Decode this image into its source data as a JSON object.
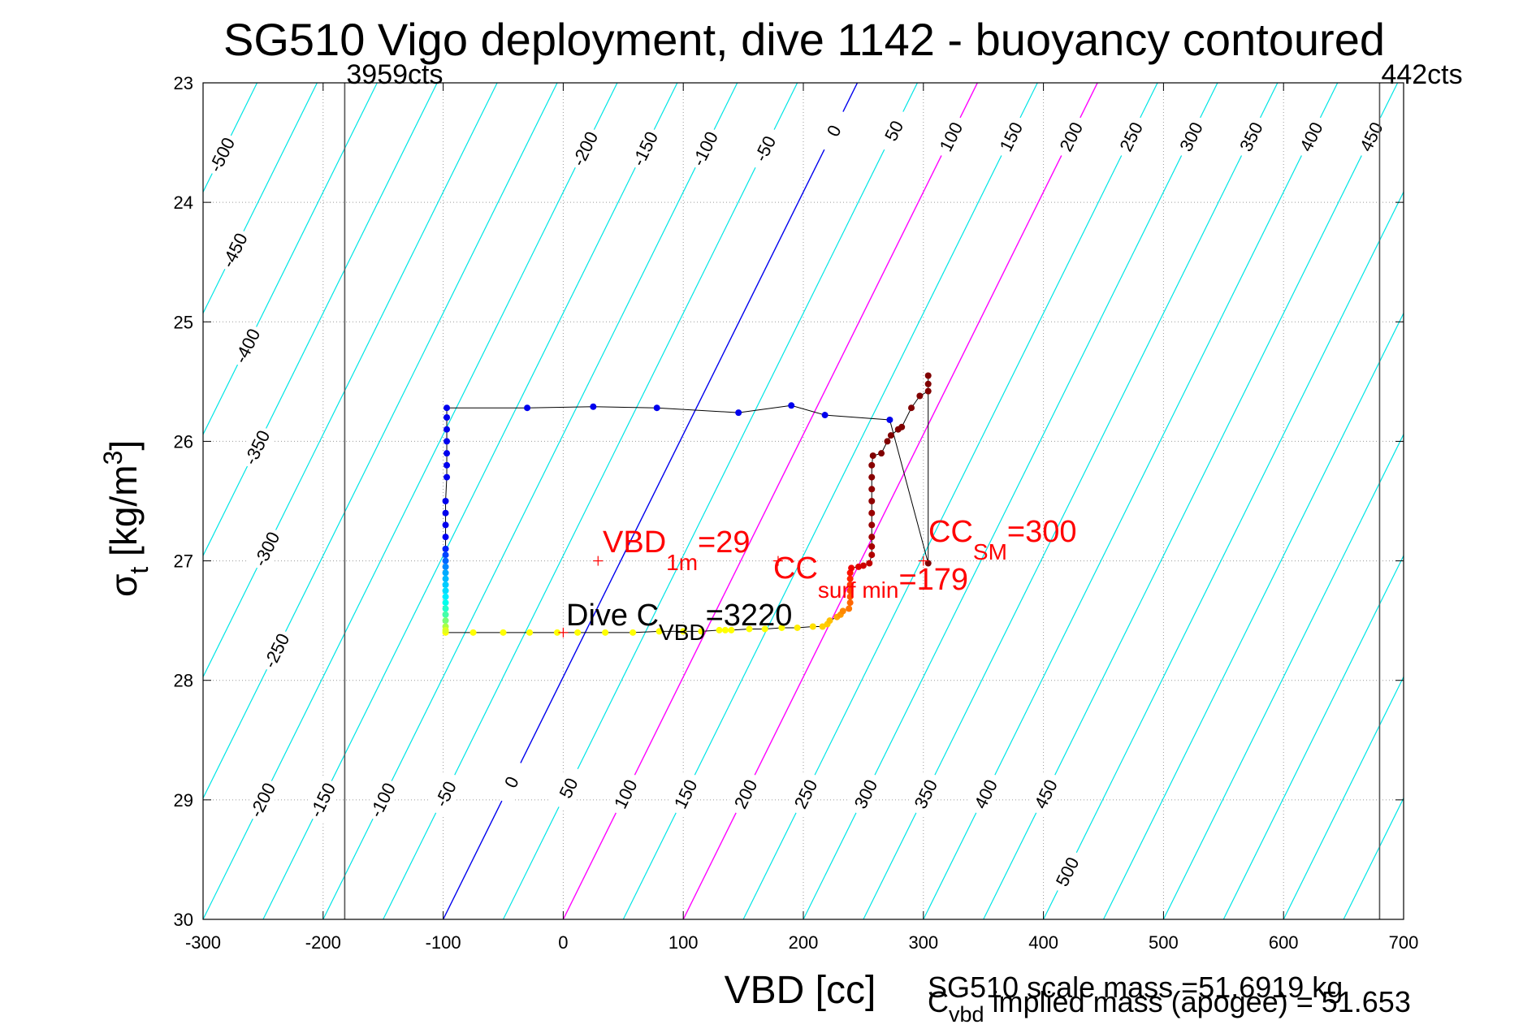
{
  "chart_data": {
    "type": "scatter",
    "title": "SG510 Vigo deployment, dive 1142 - buoyancy contoured",
    "xlabel": "VBD [cc]",
    "ylabel_main": "σ",
    "ylabel_sub": "t",
    "ylabel_unit": " [kg/m",
    "ylabel_sup": "3",
    "ylabel_close": "]",
    "xlim": [
      -300,
      700
    ],
    "ylim": [
      30,
      23
    ],
    "xticks": [
      -300,
      -200,
      -100,
      0,
      100,
      200,
      300,
      400,
      500,
      600,
      700
    ],
    "yticks": [
      23,
      24,
      25,
      26,
      27,
      28,
      29,
      30
    ],
    "grid": true,
    "colors": {
      "contour": "#00e5e5",
      "zero_contour": "#0000ee",
      "magenta_contour": "#ff00ff",
      "grid": "#9a9a9a",
      "annotation_red": "#ff0000",
      "trace": "#000000",
      "limit_line": "#555555"
    },
    "buoyancy_contours": {
      "levels": [
        -500,
        -450,
        -400,
        -350,
        -300,
        -250,
        -200,
        -150,
        -100,
        -50,
        0,
        50,
        100,
        150,
        200,
        250,
        300,
        350,
        400,
        450,
        500
      ],
      "zero_at_sigma30_vbd": -100,
      "zero_at_sigma23_vbd": 245,
      "spacing_vbd": 50,
      "blue_level": 0,
      "magenta_levels": [
        100,
        200
      ],
      "upper_labels": [
        {
          "text": "-500",
          "level": -500,
          "sigma": 23.6
        },
        {
          "text": "-450",
          "level": -450,
          "sigma": 24.4
        },
        {
          "text": "-400",
          "level": -400,
          "sigma": 25.2
        },
        {
          "text": "-350",
          "level": -350,
          "sigma": 26.05
        },
        {
          "text": "-300",
          "level": -300,
          "sigma": 26.9
        },
        {
          "text": "-250",
          "level": -250,
          "sigma": 27.75
        },
        {
          "text": "-200",
          "level": -200,
          "sigma": 23.55
        },
        {
          "text": "-150",
          "level": -150,
          "sigma": 23.55
        },
        {
          "text": "-100",
          "level": -100,
          "sigma": 23.55
        },
        {
          "text": "-50",
          "level": -50,
          "sigma": 23.55
        },
        {
          "text": "0",
          "level": 0,
          "sigma": 23.4
        },
        {
          "text": "50",
          "level": 50,
          "sigma": 23.4
        },
        {
          "text": "100",
          "level": 100,
          "sigma": 23.45
        },
        {
          "text": "150",
          "level": 150,
          "sigma": 23.45
        },
        {
          "text": "200",
          "level": 200,
          "sigma": 23.45
        },
        {
          "text": "250",
          "level": 250,
          "sigma": 23.45
        },
        {
          "text": "300",
          "level": 300,
          "sigma": 23.45
        },
        {
          "text": "350",
          "level": 350,
          "sigma": 23.45
        },
        {
          "text": "400",
          "level": 400,
          "sigma": 23.45
        },
        {
          "text": "450",
          "level": 450,
          "sigma": 23.45
        }
      ],
      "lower_labels": [
        {
          "text": "-200",
          "level": -200,
          "sigma": 29.0
        },
        {
          "text": "-150",
          "level": -150,
          "sigma": 29.0
        },
        {
          "text": "-100",
          "level": -100,
          "sigma": 29.0
        },
        {
          "text": "-50",
          "level": -50,
          "sigma": 28.95
        },
        {
          "text": "0",
          "level": 0,
          "sigma": 28.85
        },
        {
          "text": "50",
          "level": 50,
          "sigma": 28.9
        },
        {
          "text": "100",
          "level": 100,
          "sigma": 28.95
        },
        {
          "text": "150",
          "level": 150,
          "sigma": 28.95
        },
        {
          "text": "200",
          "level": 200,
          "sigma": 28.95
        },
        {
          "text": "250",
          "level": 250,
          "sigma": 28.95
        },
        {
          "text": "300",
          "level": 300,
          "sigma": 28.95
        },
        {
          "text": "350",
          "level": 350,
          "sigma": 28.95
        },
        {
          "text": "400",
          "level": 400,
          "sigma": 28.95
        },
        {
          "text": "450",
          "level": 450,
          "sigma": 28.95
        },
        {
          "text": "500",
          "level": 500,
          "sigma": 29.6
        }
      ]
    },
    "vertical_limits": [
      {
        "vbd": -182,
        "label": "3959cts"
      },
      {
        "vbd": 680,
        "label": "442cts"
      }
    ],
    "dive_trace": {
      "points": [
        {
          "vbd": -98,
          "sigma": 27.6,
          "color": "#ffff00"
        },
        {
          "vbd": -75,
          "sigma": 27.6,
          "color": "#ffff00"
        },
        {
          "vbd": -50,
          "sigma": 27.6,
          "color": "#ffff00"
        },
        {
          "vbd": -28,
          "sigma": 27.6,
          "color": "#ffff00"
        },
        {
          "vbd": -5,
          "sigma": 27.6,
          "color": "#ffff00"
        },
        {
          "vbd": 12,
          "sigma": 27.6,
          "color": "#ffff00"
        },
        {
          "vbd": 35,
          "sigma": 27.6,
          "color": "#ffff00"
        },
        {
          "vbd": 58,
          "sigma": 27.6,
          "color": "#ffff00"
        },
        {
          "vbd": 80,
          "sigma": 27.59,
          "color": "#ffff00"
        },
        {
          "vbd": 100,
          "sigma": 27.59,
          "color": "#ffff00"
        },
        {
          "vbd": 115,
          "sigma": 27.59,
          "color": "#ffff00"
        },
        {
          "vbd": 130,
          "sigma": 27.58,
          "color": "#ffff00"
        },
        {
          "vbd": 135,
          "sigma": 27.58,
          "color": "#ffff00"
        },
        {
          "vbd": 140,
          "sigma": 27.58,
          "color": "#ffff00"
        },
        {
          "vbd": 155,
          "sigma": 27.57,
          "color": "#ffff00"
        },
        {
          "vbd": 168,
          "sigma": 27.57,
          "color": "#ffff00"
        },
        {
          "vbd": 182,
          "sigma": 27.56,
          "color": "#ffff00"
        },
        {
          "vbd": 195,
          "sigma": 27.56,
          "color": "#ffee00"
        },
        {
          "vbd": 208,
          "sigma": 27.55,
          "color": "#ffe000"
        },
        {
          "vbd": 216,
          "sigma": 27.55,
          "color": "#ffd000"
        },
        {
          "vbd": 220,
          "sigma": 27.53,
          "color": "#ffcc00"
        },
        {
          "vbd": 222,
          "sigma": 27.5,
          "color": "#ffc000"
        },
        {
          "vbd": 228,
          "sigma": 27.47,
          "color": "#ffaa00"
        },
        {
          "vbd": 231,
          "sigma": 27.45,
          "color": "#ff9900"
        },
        {
          "vbd": 233,
          "sigma": 27.42,
          "color": "#ff8800"
        },
        {
          "vbd": 238,
          "sigma": 27.4,
          "color": "#ff7700"
        },
        {
          "vbd": 239,
          "sigma": 27.35,
          "color": "#ff6600"
        },
        {
          "vbd": 239,
          "sigma": 27.3,
          "color": "#ff5500"
        },
        {
          "vbd": 239,
          "sigma": 27.25,
          "color": "#ff4400"
        },
        {
          "vbd": 239,
          "sigma": 27.2,
          "color": "#ff3300"
        },
        {
          "vbd": 239,
          "sigma": 27.15,
          "color": "#ff2200"
        },
        {
          "vbd": 239,
          "sigma": 27.1,
          "color": "#ff1000"
        },
        {
          "vbd": 240,
          "sigma": 27.06,
          "color": "#f00000"
        },
        {
          "vbd": 246,
          "sigma": 27.05,
          "color": "#e00000"
        },
        {
          "vbd": 250,
          "sigma": 27.04,
          "color": "#d00000"
        },
        {
          "vbd": 255,
          "sigma": 27.02,
          "color": "#c00000"
        },
        {
          "vbd": 257,
          "sigma": 26.95,
          "color": "#b00000"
        },
        {
          "vbd": 257,
          "sigma": 26.88,
          "color": "#a80000"
        },
        {
          "vbd": 257,
          "sigma": 26.8,
          "color": "#a00000"
        },
        {
          "vbd": 257,
          "sigma": 26.7,
          "color": "#990000"
        },
        {
          "vbd": 257,
          "sigma": 26.6,
          "color": "#990000"
        },
        {
          "vbd": 257,
          "sigma": 26.5,
          "color": "#8f0000"
        },
        {
          "vbd": 257,
          "sigma": 26.4,
          "color": "#8f0000"
        },
        {
          "vbd": 257,
          "sigma": 26.3,
          "color": "#880000"
        },
        {
          "vbd": 257,
          "sigma": 26.2,
          "color": "#880000"
        },
        {
          "vbd": 258,
          "sigma": 26.12,
          "color": "#800000"
        },
        {
          "vbd": 265,
          "sigma": 26.1,
          "color": "#800000"
        },
        {
          "vbd": 270,
          "sigma": 26.0,
          "color": "#800000"
        },
        {
          "vbd": 273,
          "sigma": 25.95,
          "color": "#800000"
        },
        {
          "vbd": 279,
          "sigma": 25.9,
          "color": "#800000"
        },
        {
          "vbd": 282,
          "sigma": 25.88,
          "color": "#800000"
        },
        {
          "vbd": 290,
          "sigma": 25.72,
          "color": "#800000"
        },
        {
          "vbd": 297,
          "sigma": 25.62,
          "color": "#800000"
        },
        {
          "vbd": 304,
          "sigma": 25.58,
          "color": "#800000"
        },
        {
          "vbd": 304,
          "sigma": 25.52,
          "color": "#800000"
        },
        {
          "vbd": 304,
          "sigma": 25.45,
          "color": "#800000"
        },
        {
          "vbd": 304,
          "sigma": 27.02,
          "color": "#800000"
        },
        {
          "vbd": 272,
          "sigma": 25.82,
          "color": "#0000ee"
        },
        {
          "vbd": 218,
          "sigma": 25.78,
          "color": "#0000ee"
        },
        {
          "vbd": 190,
          "sigma": 25.7,
          "color": "#0000ee"
        },
        {
          "vbd": 146,
          "sigma": 25.76,
          "color": "#0000ee"
        },
        {
          "vbd": 78,
          "sigma": 25.72,
          "color": "#0000ee"
        },
        {
          "vbd": 25,
          "sigma": 25.71,
          "color": "#0000ee"
        },
        {
          "vbd": -30,
          "sigma": 25.72,
          "color": "#0000ee"
        },
        {
          "vbd": -97,
          "sigma": 25.72,
          "color": "#0000ee"
        },
        {
          "vbd": -97,
          "sigma": 25.8,
          "color": "#0000ee"
        },
        {
          "vbd": -97,
          "sigma": 25.9,
          "color": "#0000ee"
        },
        {
          "vbd": -97,
          "sigma": 26.0,
          "color": "#0000ee"
        },
        {
          "vbd": -97,
          "sigma": 26.1,
          "color": "#0000ee"
        },
        {
          "vbd": -97,
          "sigma": 26.2,
          "color": "#0000ee"
        },
        {
          "vbd": -97,
          "sigma": 26.3,
          "color": "#0000ee"
        },
        {
          "vbd": -98,
          "sigma": 26.5,
          "color": "#0000ee"
        },
        {
          "vbd": -98,
          "sigma": 26.6,
          "color": "#0000ee"
        },
        {
          "vbd": -98,
          "sigma": 26.7,
          "color": "#0000ee"
        },
        {
          "vbd": -98,
          "sigma": 26.8,
          "color": "#0000f4"
        },
        {
          "vbd": -98,
          "sigma": 26.9,
          "color": "#0022ff"
        },
        {
          "vbd": -98,
          "sigma": 26.95,
          "color": "#0044ff"
        },
        {
          "vbd": -98,
          "sigma": 27.0,
          "color": "#0066ff"
        },
        {
          "vbd": -98,
          "sigma": 27.05,
          "color": "#0088ff"
        },
        {
          "vbd": -98,
          "sigma": 27.1,
          "color": "#00aaff"
        },
        {
          "vbd": -98,
          "sigma": 27.15,
          "color": "#00bbff"
        },
        {
          "vbd": -98,
          "sigma": 27.2,
          "color": "#00ccff"
        },
        {
          "vbd": -98,
          "sigma": 27.25,
          "color": "#00ddff"
        },
        {
          "vbd": -98,
          "sigma": 27.3,
          "color": "#00eeff"
        },
        {
          "vbd": -98,
          "sigma": 27.35,
          "color": "#00ffee"
        },
        {
          "vbd": -98,
          "sigma": 27.4,
          "color": "#22ffcc"
        },
        {
          "vbd": -98,
          "sigma": 27.45,
          "color": "#44ffaa"
        },
        {
          "vbd": -98,
          "sigma": 27.5,
          "color": "#77ff77"
        },
        {
          "vbd": -98,
          "sigma": 27.55,
          "color": "#aaff44"
        },
        {
          "vbd": -98,
          "sigma": 27.58,
          "color": "#ddff22"
        }
      ]
    },
    "annotations": {
      "vbd1m": {
        "main": "VBD",
        "sub": "1m",
        "tail": "=29",
        "marker_vbd": 29,
        "marker_sigma": 27.0
      },
      "cc_sm": {
        "main": "CC",
        "sub": "SM",
        "tail": "=300",
        "marker_vbd": 300,
        "marker_sigma": 27.0
      },
      "cc_surf": {
        "main": "CC",
        "sub": "surf min",
        "tail": "=179",
        "marker_vbd": 179,
        "marker_sigma": 27.0
      },
      "dive_cvbd": {
        "main": "Dive C",
        "sub": "VBD",
        "tail": "=3220",
        "marker_vbd": 0,
        "marker_sigma": 27.6
      },
      "scale_mass": "SG510 scale mass =51.6919 kg",
      "implied_main": "C",
      "implied_sub": "vbd",
      "implied_tail": " implied mass (apogee) = 51.653"
    }
  }
}
